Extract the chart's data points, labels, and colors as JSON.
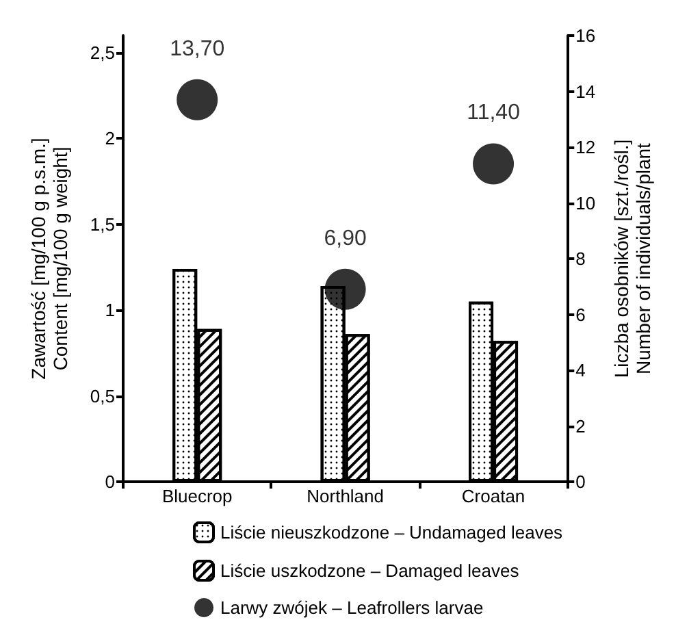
{
  "chart_data": {
    "type": "bar",
    "categories": [
      "Bluecrop",
      "Northland",
      "Croatan"
    ],
    "ylabel": "Zawartość [mg/100 g p.s.m.]\nContent [mg/100 g weight]",
    "y2label": "Liczba osobników [szt./rośl.]\nNumber of individuals/plant",
    "series": [
      {
        "name": "Liście nieuszkodzone – Undamaged leaves",
        "color": "#ffffff",
        "values": [
          1.24,
          1.14,
          1.05
        ]
      },
      {
        "name": "Liście uszkodzone – Damaged leaves",
        "color": "#ffffff",
        "values": [
          0.89,
          0.86,
          0.82
        ]
      },
      {
        "name": "Larwy zwójek – Leafrollers larvae",
        "type": "scatter",
        "axis": "y2",
        "color": "#000000",
        "marker": "circle",
        "x": [
          "Bluecrop",
          "Northland",
          "Croatan"
        ],
        "values": [
          13.7,
          6.9,
          11.4
        ],
        "value_labels": [
          "13,70",
          "6,90",
          "11,40"
        ]
      }
    ],
    "ylim": [
      0,
      2.6
    ],
    "yticks": [
      0,
      {
        "value": 0.5,
        "label": "0,5"
      },
      1,
      {
        "value": 1.5,
        "label": "1,5"
      },
      2,
      {
        "value": 2.5,
        "label": "2,5"
      }
    ],
    "y2lim": [
      0,
      16
    ],
    "y2ticks": [
      0,
      2,
      4,
      6,
      8,
      10,
      12,
      14,
      16
    ],
    "grid": false,
    "legend": "bottom"
  }
}
